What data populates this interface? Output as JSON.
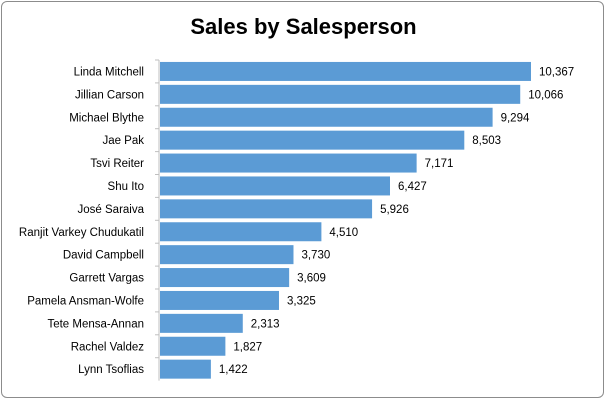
{
  "chart_data": {
    "type": "bar",
    "orientation": "horizontal",
    "title": "Sales by Salesperson",
    "xlabel": "",
    "ylabel": "",
    "grid": false,
    "legend": "none",
    "bar_color": "#5B9BD5",
    "categories": [
      "Linda Mitchell",
      "Jillian Carson",
      "Michael Blythe",
      "Jae Pak",
      "Tsvi Reiter",
      "Shu Ito",
      "José Saraiva",
      "Ranjit Varkey Chudukatil",
      "David Campbell",
      "Garrett Vargas",
      "Pamela Ansman-Wolfe",
      "Tete Mensa-Annan",
      "Rachel Valdez",
      "Lynn Tsoflias"
    ],
    "values": [
      10367,
      10066,
      9294,
      8503,
      7171,
      6427,
      5926,
      4510,
      3730,
      3609,
      3325,
      2313,
      1827,
      1422
    ],
    "value_labels": [
      "10,367",
      "10,066",
      "9,294",
      "8,503",
      "7,171",
      "6,427",
      "5,926",
      "4,510",
      "3,730",
      "3,609",
      "3,325",
      "2,313",
      "1,827",
      "1,422"
    ]
  }
}
